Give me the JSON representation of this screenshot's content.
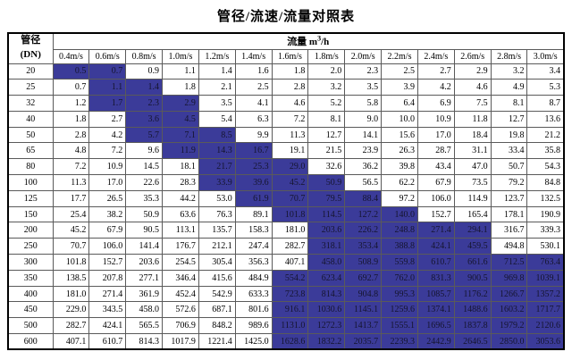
{
  "title": "管径/流速/流量对照表",
  "colors": {
    "highlight_cell": "#3b3b99",
    "grid_line": "#5a5a5a",
    "outer_border": "#000000",
    "text": "#000000",
    "background": "#ffffff"
  },
  "table": {
    "corner_header": {
      "line1": "管径",
      "line2": "(DN)"
    },
    "flow_header": {
      "prefix": "流量 m",
      "superscript": "3",
      "suffix": "/h"
    },
    "velocity_headers": [
      "0.4m/s",
      "0.6m/s",
      "0.8m/s",
      "1.0m/s",
      "1.2m/s",
      "1.4m/s",
      "1.6m/s",
      "1.8m/s",
      "2.0m/s",
      "2.2m/s",
      "2.4m/s",
      "2.6m/s",
      "2.8m/s",
      "3.0m/s"
    ],
    "rows": [
      {
        "dn": "20",
        "values": [
          "0.5",
          "0.7",
          "0.9",
          "1.1",
          "1.4",
          "1.6",
          "1.8",
          "2.0",
          "2.3",
          "2.5",
          "2.7",
          "2.9",
          "3.2",
          "3.4"
        ],
        "highlight": [
          0,
          1
        ]
      },
      {
        "dn": "25",
        "values": [
          "0.7",
          "1.1",
          "1.4",
          "1.8",
          "2.1",
          "2.5",
          "2.8",
          "3.2",
          "3.5",
          "3.9",
          "4.2",
          "4.6",
          "4.9",
          "5.3"
        ],
        "highlight": [
          1,
          2
        ]
      },
      {
        "dn": "32",
        "values": [
          "1.2",
          "1.7",
          "2.3",
          "2.9",
          "3.5",
          "4.1",
          "4.6",
          "5.2",
          "5.8",
          "6.4",
          "6.9",
          "7.5",
          "8.1",
          "8.7"
        ],
        "highlight": [
          1,
          2,
          3
        ]
      },
      {
        "dn": "40",
        "values": [
          "1.8",
          "2.7",
          "3.6",
          "4.5",
          "5.4",
          "6.3",
          "7.2",
          "8.1",
          "9.0",
          "10.0",
          "10.9",
          "11.8",
          "12.7",
          "13.6"
        ],
        "highlight": [
          2,
          3
        ]
      },
      {
        "dn": "50",
        "values": [
          "2.8",
          "4.2",
          "5.7",
          "7.1",
          "8.5",
          "9.9",
          "11.3",
          "12.7",
          "14.1",
          "15.6",
          "17.0",
          "18.4",
          "19.8",
          "21.2"
        ],
        "highlight": [
          2,
          3,
          4
        ]
      },
      {
        "dn": "65",
        "values": [
          "4.8",
          "7.2",
          "9.6",
          "11.9",
          "14.3",
          "16.7",
          "19.1",
          "21.5",
          "23.9",
          "26.3",
          "28.7",
          "31.1",
          "33.4",
          "35.8"
        ],
        "highlight": [
          3,
          4,
          5
        ]
      },
      {
        "dn": "80",
        "values": [
          "7.2",
          "10.9",
          "14.5",
          "18.1",
          "21.7",
          "25.3",
          "29.0",
          "32.6",
          "36.2",
          "39.8",
          "43.4",
          "47.0",
          "50.7",
          "54.3"
        ],
        "highlight": [
          4,
          5,
          6
        ]
      },
      {
        "dn": "100",
        "values": [
          "11.3",
          "17.0",
          "22.6",
          "28.3",
          "33.9",
          "39.6",
          "45.2",
          "50.9",
          "56.5",
          "62.2",
          "67.9",
          "73.5",
          "79.2",
          "84.8"
        ],
        "highlight": [
          4,
          5,
          6,
          7
        ]
      },
      {
        "dn": "125",
        "values": [
          "17.7",
          "26.5",
          "35.3",
          "44.2",
          "53.0",
          "61.9",
          "70.7",
          "79.5",
          "88.4",
          "97.2",
          "106.0",
          "114.9",
          "123.7",
          "132.5"
        ],
        "highlight": [
          5,
          6,
          7,
          8
        ]
      },
      {
        "dn": "150",
        "values": [
          "25.4",
          "38.2",
          "50.9",
          "63.6",
          "76.3",
          "89.1",
          "101.8",
          "114.5",
          "127.2",
          "140.0",
          "152.7",
          "165.4",
          "178.1",
          "190.9"
        ],
        "highlight": [
          6,
          7,
          8,
          9
        ]
      },
      {
        "dn": "200",
        "values": [
          "45.2",
          "67.9",
          "90.5",
          "113.1",
          "135.7",
          "158.3",
          "181.0",
          "203.6",
          "226.2",
          "248.8",
          "271.4",
          "294.1",
          "316.7",
          "339.3"
        ],
        "highlight": [
          7,
          8,
          9,
          10,
          11
        ]
      },
      {
        "dn": "250",
        "values": [
          "70.7",
          "106.0",
          "141.4",
          "176.7",
          "212.1",
          "247.4",
          "282.7",
          "318.1",
          "353.4",
          "388.8",
          "424.1",
          "459.5",
          "494.8",
          "530.1"
        ],
        "highlight": [
          7,
          8,
          9,
          10,
          11
        ]
      },
      {
        "dn": "300",
        "values": [
          "101.8",
          "152.7",
          "203.6",
          "254.5",
          "305.4",
          "356.3",
          "407.1",
          "458.0",
          "508.9",
          "559.8",
          "610.7",
          "661.6",
          "712.5",
          "763.4"
        ],
        "highlight": [
          7,
          8,
          9,
          10,
          11,
          12,
          13
        ]
      },
      {
        "dn": "350",
        "values": [
          "138.5",
          "207.8",
          "277.1",
          "346.4",
          "415.6",
          "484.9",
          "554.2",
          "623.4",
          "692.7",
          "762.0",
          "831.3",
          "900.5",
          "969.8",
          "1039.1"
        ],
        "highlight": [
          6,
          7,
          8,
          9,
          10,
          11,
          12,
          13
        ]
      },
      {
        "dn": "400",
        "values": [
          "181.0",
          "271.4",
          "361.9",
          "452.4",
          "542.9",
          "633.3",
          "723.8",
          "814.3",
          "904.8",
          "995.3",
          "1085.7",
          "1176.2",
          "1266.7",
          "1357.2"
        ],
        "highlight": [
          6,
          7,
          8,
          9,
          10,
          11,
          12,
          13
        ]
      },
      {
        "dn": "450",
        "values": [
          "229.0",
          "343.5",
          "458.0",
          "572.6",
          "687.1",
          "801.6",
          "916.1",
          "1030.6",
          "1145.1",
          "1259.6",
          "1374.1",
          "1488.6",
          "1603.2",
          "1717.7"
        ],
        "highlight": [
          6,
          7,
          8,
          9,
          10,
          11,
          12,
          13
        ]
      },
      {
        "dn": "500",
        "values": [
          "282.7",
          "424.1",
          "565.5",
          "706.9",
          "848.2",
          "989.6",
          "1131.0",
          "1272.3",
          "1413.7",
          "1555.1",
          "1696.5",
          "1837.8",
          "1979.2",
          "2120.6"
        ],
        "highlight": [
          6,
          7,
          8,
          9,
          10,
          11,
          12,
          13
        ]
      },
      {
        "dn": "600",
        "values": [
          "407.1",
          "610.7",
          "814.3",
          "1017.9",
          "1221.4",
          "1425.0",
          "1628.6",
          "1832.2",
          "2035.7",
          "2239.3",
          "2442.9",
          "2646.5",
          "2850.0",
          "3053.6"
        ],
        "highlight": [
          6,
          7,
          8,
          9,
          10,
          11,
          12,
          13
        ]
      }
    ]
  }
}
